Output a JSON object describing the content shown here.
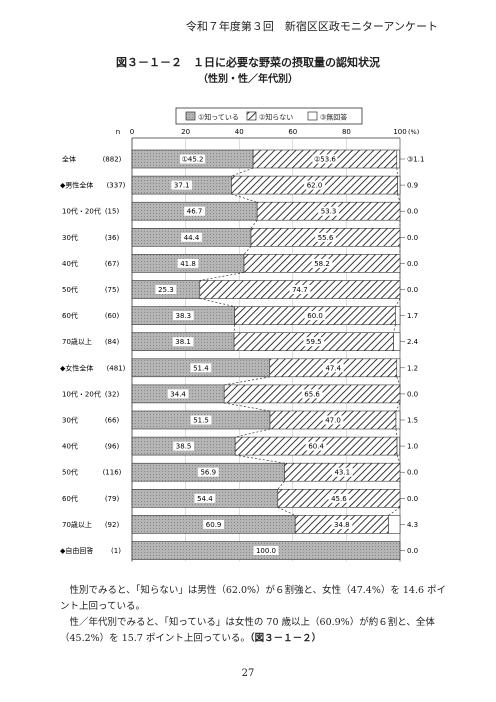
{
  "header": "令和７年度第３回　新宿区区政モニターアンケート",
  "title": "図３－１－２　１日に必要な野菜の摂取量の認知状況",
  "subtitle": "（性別・性／年代別）",
  "colors": {
    "c1": "#aaaaaa",
    "c2": "hatch",
    "c3": "#ffffff"
  },
  "chart_data": {
    "type": "bar",
    "stacked": true,
    "orientation": "horizontal",
    "legend": [
      "①知っている",
      "②知らない",
      "③無回答"
    ],
    "legend_position": "top",
    "n_label": "n",
    "x_ticks": [
      "0",
      "20",
      "40",
      "60",
      "80",
      "100"
    ],
    "x_unit": "(%)",
    "xlim": [
      0,
      100
    ],
    "rows": [
      {
        "label": "全体",
        "n": "(882)",
        "values": [
          45.2,
          53.6,
          1.1
        ],
        "labels": [
          "①45.2",
          "②53.6",
          "③1.1"
        ],
        "section": false
      },
      {
        "label": "◆男性全体",
        "n": "(337)",
        "values": [
          37.1,
          62.0,
          0.9
        ],
        "labels": [
          "37.1",
          "62.0",
          "0.9"
        ],
        "section": true
      },
      {
        "label": "10代・20代",
        "n": "(15)",
        "values": [
          46.7,
          53.3,
          0.0
        ],
        "labels": [
          "46.7",
          "53.3",
          "0.0"
        ],
        "section": false
      },
      {
        "label": "30代",
        "n": "(36)",
        "values": [
          44.4,
          55.6,
          0.0
        ],
        "labels": [
          "44.4",
          "55.6",
          "0.0"
        ],
        "section": false
      },
      {
        "label": "40代",
        "n": "(67)",
        "values": [
          41.8,
          58.2,
          0.0
        ],
        "labels": [
          "41.8",
          "58.2",
          "0.0"
        ],
        "section": false
      },
      {
        "label": "50代",
        "n": "(75)",
        "values": [
          25.3,
          74.7,
          0.0
        ],
        "labels": [
          "25.3",
          "74.7",
          "0.0"
        ],
        "section": false
      },
      {
        "label": "60代",
        "n": "(60)",
        "values": [
          38.3,
          60.0,
          1.7
        ],
        "labels": [
          "38.3",
          "60.0",
          "1.7"
        ],
        "section": false
      },
      {
        "label": "70歳以上",
        "n": "(84)",
        "values": [
          38.1,
          59.5,
          2.4
        ],
        "labels": [
          "38.1",
          "59.5",
          "2.4"
        ],
        "section": false
      },
      {
        "label": "◆女性全体",
        "n": "(481)",
        "values": [
          51.4,
          47.4,
          1.2
        ],
        "labels": [
          "51.4",
          "47.4",
          "1.2"
        ],
        "section": true
      },
      {
        "label": "10代・20代",
        "n": "(32)",
        "values": [
          34.4,
          65.6,
          0.0
        ],
        "labels": [
          "34.4",
          "65.6",
          "0.0"
        ],
        "section": false
      },
      {
        "label": "30代",
        "n": "(66)",
        "values": [
          51.5,
          47.0,
          1.5
        ],
        "labels": [
          "51.5",
          "47.0",
          "1.5"
        ],
        "section": false
      },
      {
        "label": "40代",
        "n": "(96)",
        "values": [
          38.5,
          60.4,
          1.0
        ],
        "labels": [
          "38.5",
          "60.4",
          "1.0"
        ],
        "section": false
      },
      {
        "label": "50代",
        "n": "(116)",
        "values": [
          56.9,
          43.1,
          0.0
        ],
        "labels": [
          "56.9",
          "43.1",
          "0.0"
        ],
        "section": false
      },
      {
        "label": "60代",
        "n": "(79)",
        "values": [
          54.4,
          45.6,
          0.0
        ],
        "labels": [
          "54.4",
          "45.6",
          "0.0"
        ],
        "section": false
      },
      {
        "label": "70歳以上",
        "n": "(92)",
        "values": [
          60.9,
          34.8,
          4.3
        ],
        "labels": [
          "60.9",
          "34.8",
          "4.3"
        ],
        "section": false
      },
      {
        "label": "◆自由回答",
        "n": "(1)",
        "values": [
          100.0,
          0.0,
          0.0
        ],
        "labels": [
          "100.0",
          "0.0",
          "0.0"
        ],
        "section": true
      }
    ]
  },
  "body": {
    "p1": "性別でみると、「知らない」は男性（62.0%）が６割強と、女性（47.4%）を 14.6 ポイント上回っている。",
    "p2": "性／年代別でみると、「知っている」は女性の 70 歳以上（60.9%）が約６割と、全体（45.2%）を 15.7 ポイント上回っている。",
    "p2_ref": "（図３－１－２）"
  },
  "page_number": "27"
}
